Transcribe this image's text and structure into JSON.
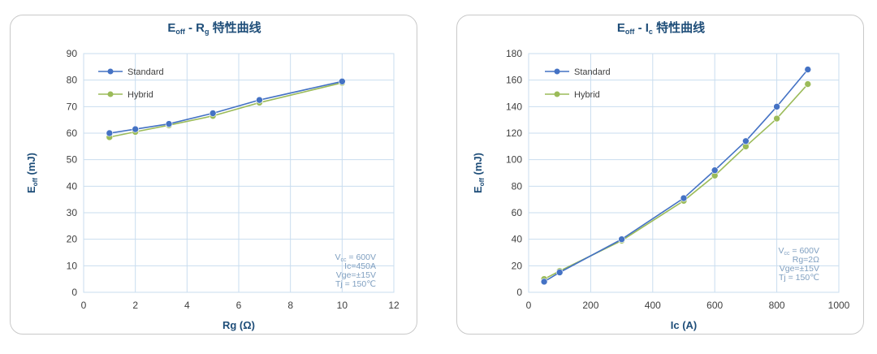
{
  "chart_data": [
    {
      "type": "line",
      "title": "E_off - R_g 特性曲线",
      "title_parts": {
        "main": "E",
        "main_sub": "off",
        "sep": " - R",
        "sep_sub": "g",
        "rest": " 特性曲线"
      },
      "xlabel": "Rg (Ω)",
      "ylabel": "E_off (mJ)",
      "ylabel_parts": {
        "main": "E",
        "sub": "off",
        "rest": " (mJ)"
      },
      "xlim": [
        0,
        12
      ],
      "ylim": [
        0,
        90
      ],
      "xticks": [
        0,
        2,
        4,
        6,
        8,
        10,
        12
      ],
      "yticks": [
        0,
        10,
        20,
        30,
        40,
        50,
        60,
        70,
        80,
        90
      ],
      "grid": true,
      "legend": "top-left",
      "series": [
        {
          "name": "Standard",
          "color": "#4472c4",
          "x": [
            1,
            2,
            3.3,
            5,
            6.8,
            10
          ],
          "y": [
            60,
            61.5,
            63.5,
            67.5,
            72.5,
            79.5
          ]
        },
        {
          "name": "Hybrid",
          "color": "#9bbb59",
          "x": [
            1,
            2,
            3.3,
            5,
            6.8,
            10
          ],
          "y": [
            58.5,
            60.5,
            63,
            66.5,
            71.5,
            79
          ]
        }
      ],
      "annotation": [
        {
          "main": "V",
          "sub": "cc",
          "rest": " = 600V"
        },
        {
          "main": "Ic=450A",
          "sub": "",
          "rest": ""
        },
        {
          "main": "Vge=±15V",
          "sub": "",
          "rest": ""
        },
        {
          "main": "Tj = 150℃",
          "sub": "",
          "rest": ""
        }
      ]
    },
    {
      "type": "line",
      "title": "E_off - I_c 特性曲线",
      "title_parts": {
        "main": "E",
        "main_sub": "off",
        "sep": " - I",
        "sep_sub": "c",
        "rest": " 特性曲线"
      },
      "xlabel": "Ic (A)",
      "ylabel": "E_off (mJ)",
      "ylabel_parts": {
        "main": "E",
        "sub": "off",
        "rest": " (mJ)"
      },
      "xlim": [
        0,
        1000
      ],
      "ylim": [
        0,
        180
      ],
      "xticks": [
        0,
        200,
        400,
        600,
        800,
        1000
      ],
      "yticks": [
        0,
        20,
        40,
        60,
        80,
        100,
        120,
        140,
        160,
        180
      ],
      "grid": true,
      "legend": "top-left",
      "series": [
        {
          "name": "Standard",
          "color": "#4472c4",
          "x": [
            50,
            100,
            300,
            500,
            600,
            700,
            800,
            900
          ],
          "y": [
            8,
            15,
            40,
            71,
            92,
            114,
            140,
            168
          ]
        },
        {
          "name": "Hybrid",
          "color": "#9bbb59",
          "x": [
            50,
            100,
            300,
            500,
            600,
            700,
            800,
            900
          ],
          "y": [
            10,
            16,
            39,
            69,
            88,
            110,
            131,
            157
          ]
        }
      ],
      "annotation": [
        {
          "main": "V",
          "sub": "cc",
          "rest": " = 600V"
        },
        {
          "main": "Rg=2Ω",
          "sub": "",
          "rest": ""
        },
        {
          "main": "Vge=±15V",
          "sub": "",
          "rest": ""
        },
        {
          "main": "Tj = 150℃",
          "sub": "",
          "rest": ""
        }
      ]
    }
  ]
}
